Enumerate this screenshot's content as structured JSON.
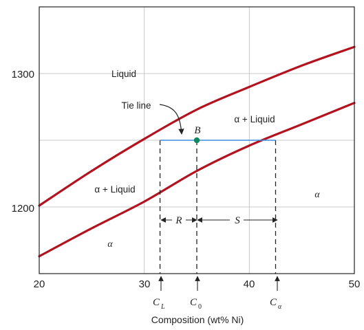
{
  "chart_data": {
    "type": "line",
    "title": "",
    "xlabel": "Composition (wt% Ni)",
    "ylabel": "",
    "xlim": [
      20,
      50
    ],
    "ylim": [
      1150,
      1350
    ],
    "x_ticks": [
      "20",
      "30",
      "40",
      "50"
    ],
    "y_ticks": [
      "1200",
      "1300"
    ],
    "grid": true,
    "series": [
      {
        "x": [
          20,
          25,
          30,
          35,
          40,
          45,
          50
        ],
        "y": [
          1201,
          1227,
          1251,
          1273,
          1290,
          1306,
          1320
        ],
        "color": "#b3121f"
      },
      {
        "x": [
          20,
          25,
          30,
          35,
          40,
          45,
          50
        ],
        "y": [
          1163,
          1184,
          1204,
          1227,
          1246,
          1262,
          1278
        ],
        "color": "#b3121f"
      }
    ],
    "tie_line": {
      "x_start": 31.5,
      "x_end": 42.5,
      "y": 1250,
      "color": "#3a8dde"
    },
    "point": {
      "label": "B",
      "x": 35,
      "y": 1250,
      "color": "#0f8a5f"
    },
    "regions": {
      "liquid": "Liquid",
      "alpha_liquid_upper": "α + Liquid",
      "alpha_liquid_left": "α + Liquid",
      "alpha_right": "α",
      "alpha_left": "α"
    },
    "annotations": {
      "tie_line_label": "Tie line",
      "R": "R",
      "S": "S",
      "CL": {
        "main": "C",
        "sub": "L"
      },
      "C0": {
        "main": "C",
        "sub": "0"
      },
      "Calpha": {
        "main": "C",
        "sub": "α"
      }
    }
  }
}
